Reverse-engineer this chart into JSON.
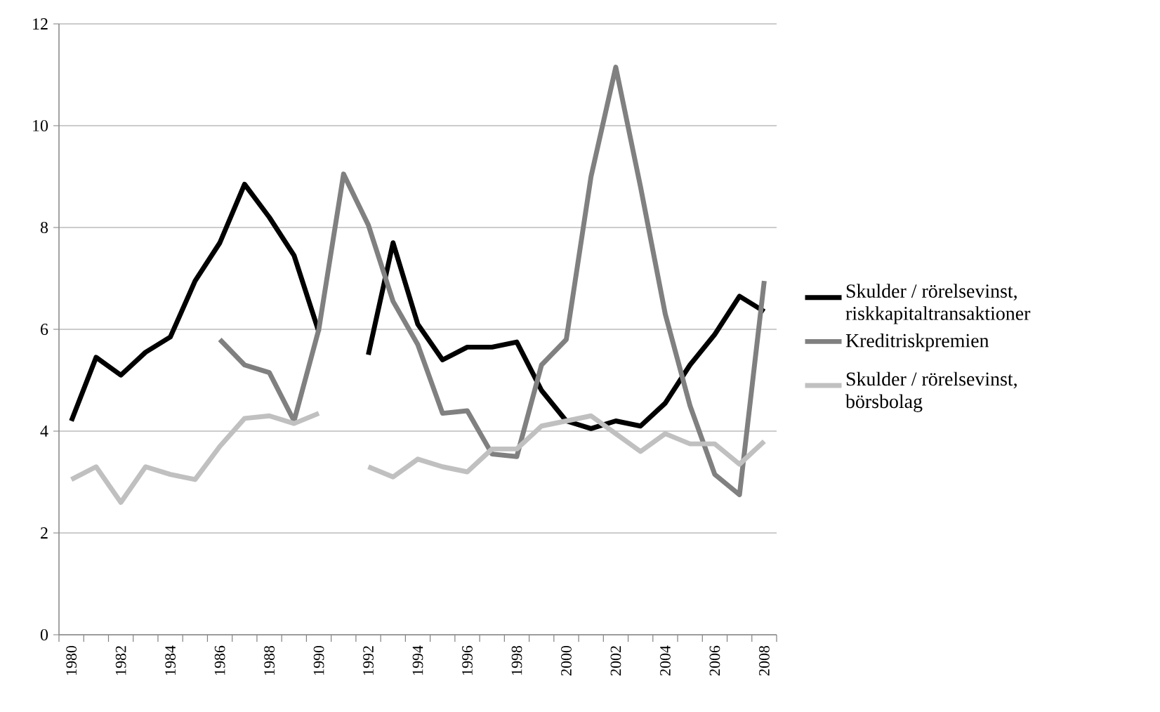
{
  "chart_data": {
    "type": "line",
    "categories": [
      "1980",
      null,
      "1982",
      null,
      "1984",
      null,
      "1986",
      null,
      "1988",
      null,
      "1990",
      null,
      "1992",
      null,
      "1994",
      null,
      "1996",
      null,
      "1998",
      null,
      "2000",
      null,
      "2002",
      null,
      "2004",
      null,
      "2006",
      null,
      "2008"
    ],
    "series": [
      {
        "name": "Skulder / rörelsevinst, riskkapitaltransaktioner",
        "color": "#000000",
        "values": [
          4.2,
          5.45,
          5.1,
          5.55,
          5.85,
          6.95,
          7.7,
          8.85,
          8.2,
          7.45,
          5.95,
          null,
          5.5,
          7.7,
          6.1,
          5.4,
          5.65,
          5.65,
          5.75,
          4.8,
          4.2,
          4.05,
          4.2,
          4.1,
          4.55,
          5.3,
          5.9,
          6.65,
          6.35
        ]
      },
      {
        "name": "Kreditriskpremien",
        "color": "#808080",
        "values": [
          null,
          null,
          null,
          null,
          null,
          null,
          5.8,
          5.3,
          5.15,
          4.2,
          6.0,
          9.05,
          8.05,
          6.55,
          5.7,
          4.35,
          4.4,
          3.55,
          3.5,
          5.3,
          5.8,
          9.0,
          11.15,
          8.8,
          6.3,
          4.5,
          3.15,
          2.75,
          6.95
        ]
      },
      {
        "name": "Skulder / rörelsevinst, börsbolag",
        "color": "#c0c0c0",
        "values": [
          3.05,
          3.3,
          2.6,
          3.3,
          3.15,
          3.05,
          3.7,
          4.25,
          4.3,
          4.15,
          4.35,
          null,
          3.3,
          3.1,
          3.45,
          3.3,
          3.2,
          3.65,
          3.65,
          4.1,
          4.2,
          4.3,
          3.95,
          3.6,
          3.95,
          3.75,
          3.75,
          3.35,
          3.8
        ]
      }
    ],
    "ylim": [
      0,
      12
    ],
    "yticks": [
      0,
      2,
      4,
      6,
      8,
      10,
      12
    ],
    "grid": "y",
    "legend": "right",
    "marker": "none",
    "line_style": "solid"
  }
}
